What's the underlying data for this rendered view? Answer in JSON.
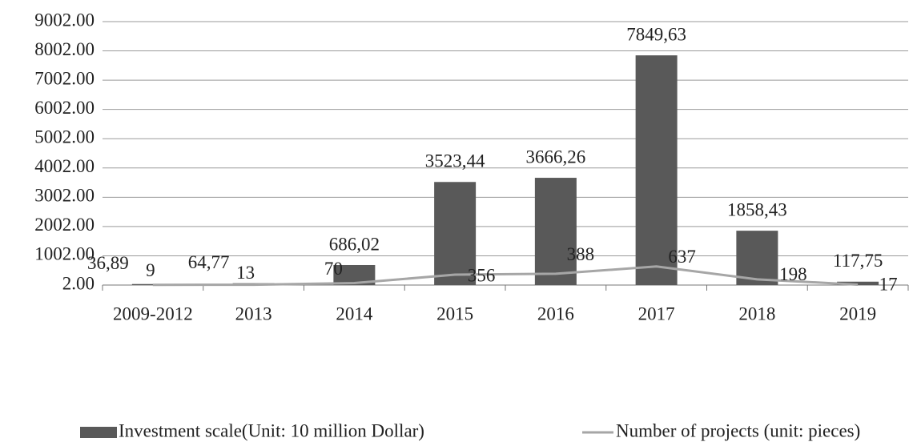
{
  "chart_data": {
    "type": "bar",
    "categories": [
      "2009-2012",
      "2013",
      "2014",
      "2015",
      "2016",
      "2017",
      "2018",
      "2019"
    ],
    "series": [
      {
        "name": "Investment scale(Unit: 10 million Dollar)",
        "type": "bar",
        "color": "#595959",
        "values": [
          36.89,
          64.77,
          686.02,
          3523.44,
          3666.26,
          7849.63,
          1858.43,
          117.75
        ],
        "value_labels": [
          "36,89",
          "64,77",
          "686,02",
          "3523,44",
          "3666,26",
          "7849,63",
          "1858,43",
          "117,75"
        ]
      },
      {
        "name": "Number of projects (unit: pieces)",
        "type": "line",
        "color": "#a6a6a6",
        "values": [
          9,
          13,
          70,
          356,
          388,
          637,
          198,
          17
        ]
      }
    ],
    "ylim": [
      2,
      9002
    ],
    "yticks": [
      {
        "value": 2,
        "label": "2.00"
      },
      {
        "value": 1002,
        "label": "1002.00"
      },
      {
        "value": 2002,
        "label": "2002.00"
      },
      {
        "value": 3002,
        "label": "3002.00"
      },
      {
        "value": 4002,
        "label": "4002.00"
      },
      {
        "value": 5002,
        "label": "5002.00"
      },
      {
        "value": 6002,
        "label": "6002.00"
      },
      {
        "value": 7002,
        "label": "7002.00"
      },
      {
        "value": 8002,
        "label": "8002.00"
      },
      {
        "value": 9002,
        "label": "9002.00"
      }
    ],
    "grid": true
  }
}
